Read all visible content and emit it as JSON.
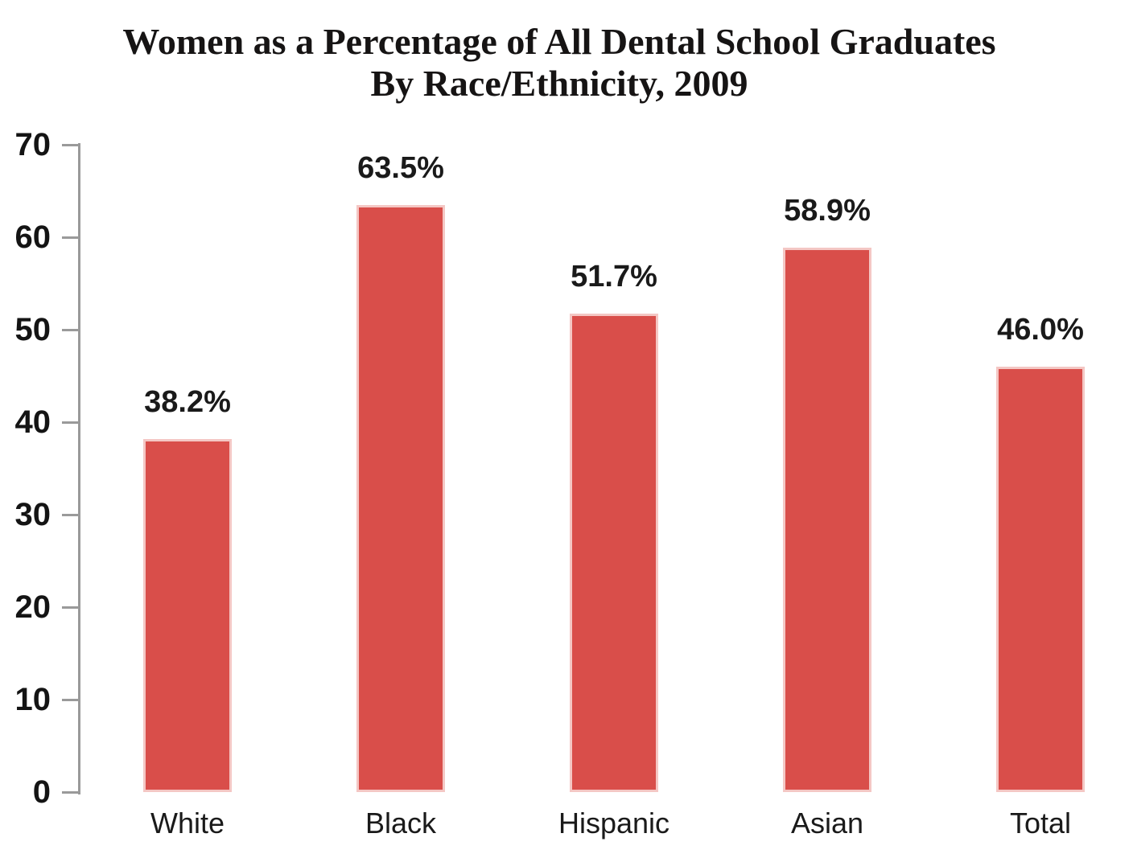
{
  "chart_data": {
    "type": "bar",
    "title_line1": "Women as a Percentage of All Dental School Graduates",
    "title_line2": "By Race/Ethnicity, 2009",
    "categories": [
      "White",
      "Black",
      "Hispanic",
      "Asian",
      "Total"
    ],
    "values": [
      38.2,
      63.5,
      51.7,
      58.9,
      46.0
    ],
    "value_labels": [
      "38.2%",
      "63.5%",
      "51.7%",
      "58.9%",
      "46.0%"
    ],
    "xlabel": "",
    "ylabel": "",
    "ylim": [
      0,
      70
    ],
    "yticks": [
      "0",
      "10",
      "20",
      "30",
      "40",
      "50",
      "60",
      "70"
    ],
    "grid": false,
    "legend": "none",
    "colors": {
      "bar": "#d94e4a",
      "bar_edge": "#f4c7c4",
      "axis": "#9a9a9a",
      "tick_text": "#141414",
      "label_text": "#1a1a1a"
    }
  }
}
